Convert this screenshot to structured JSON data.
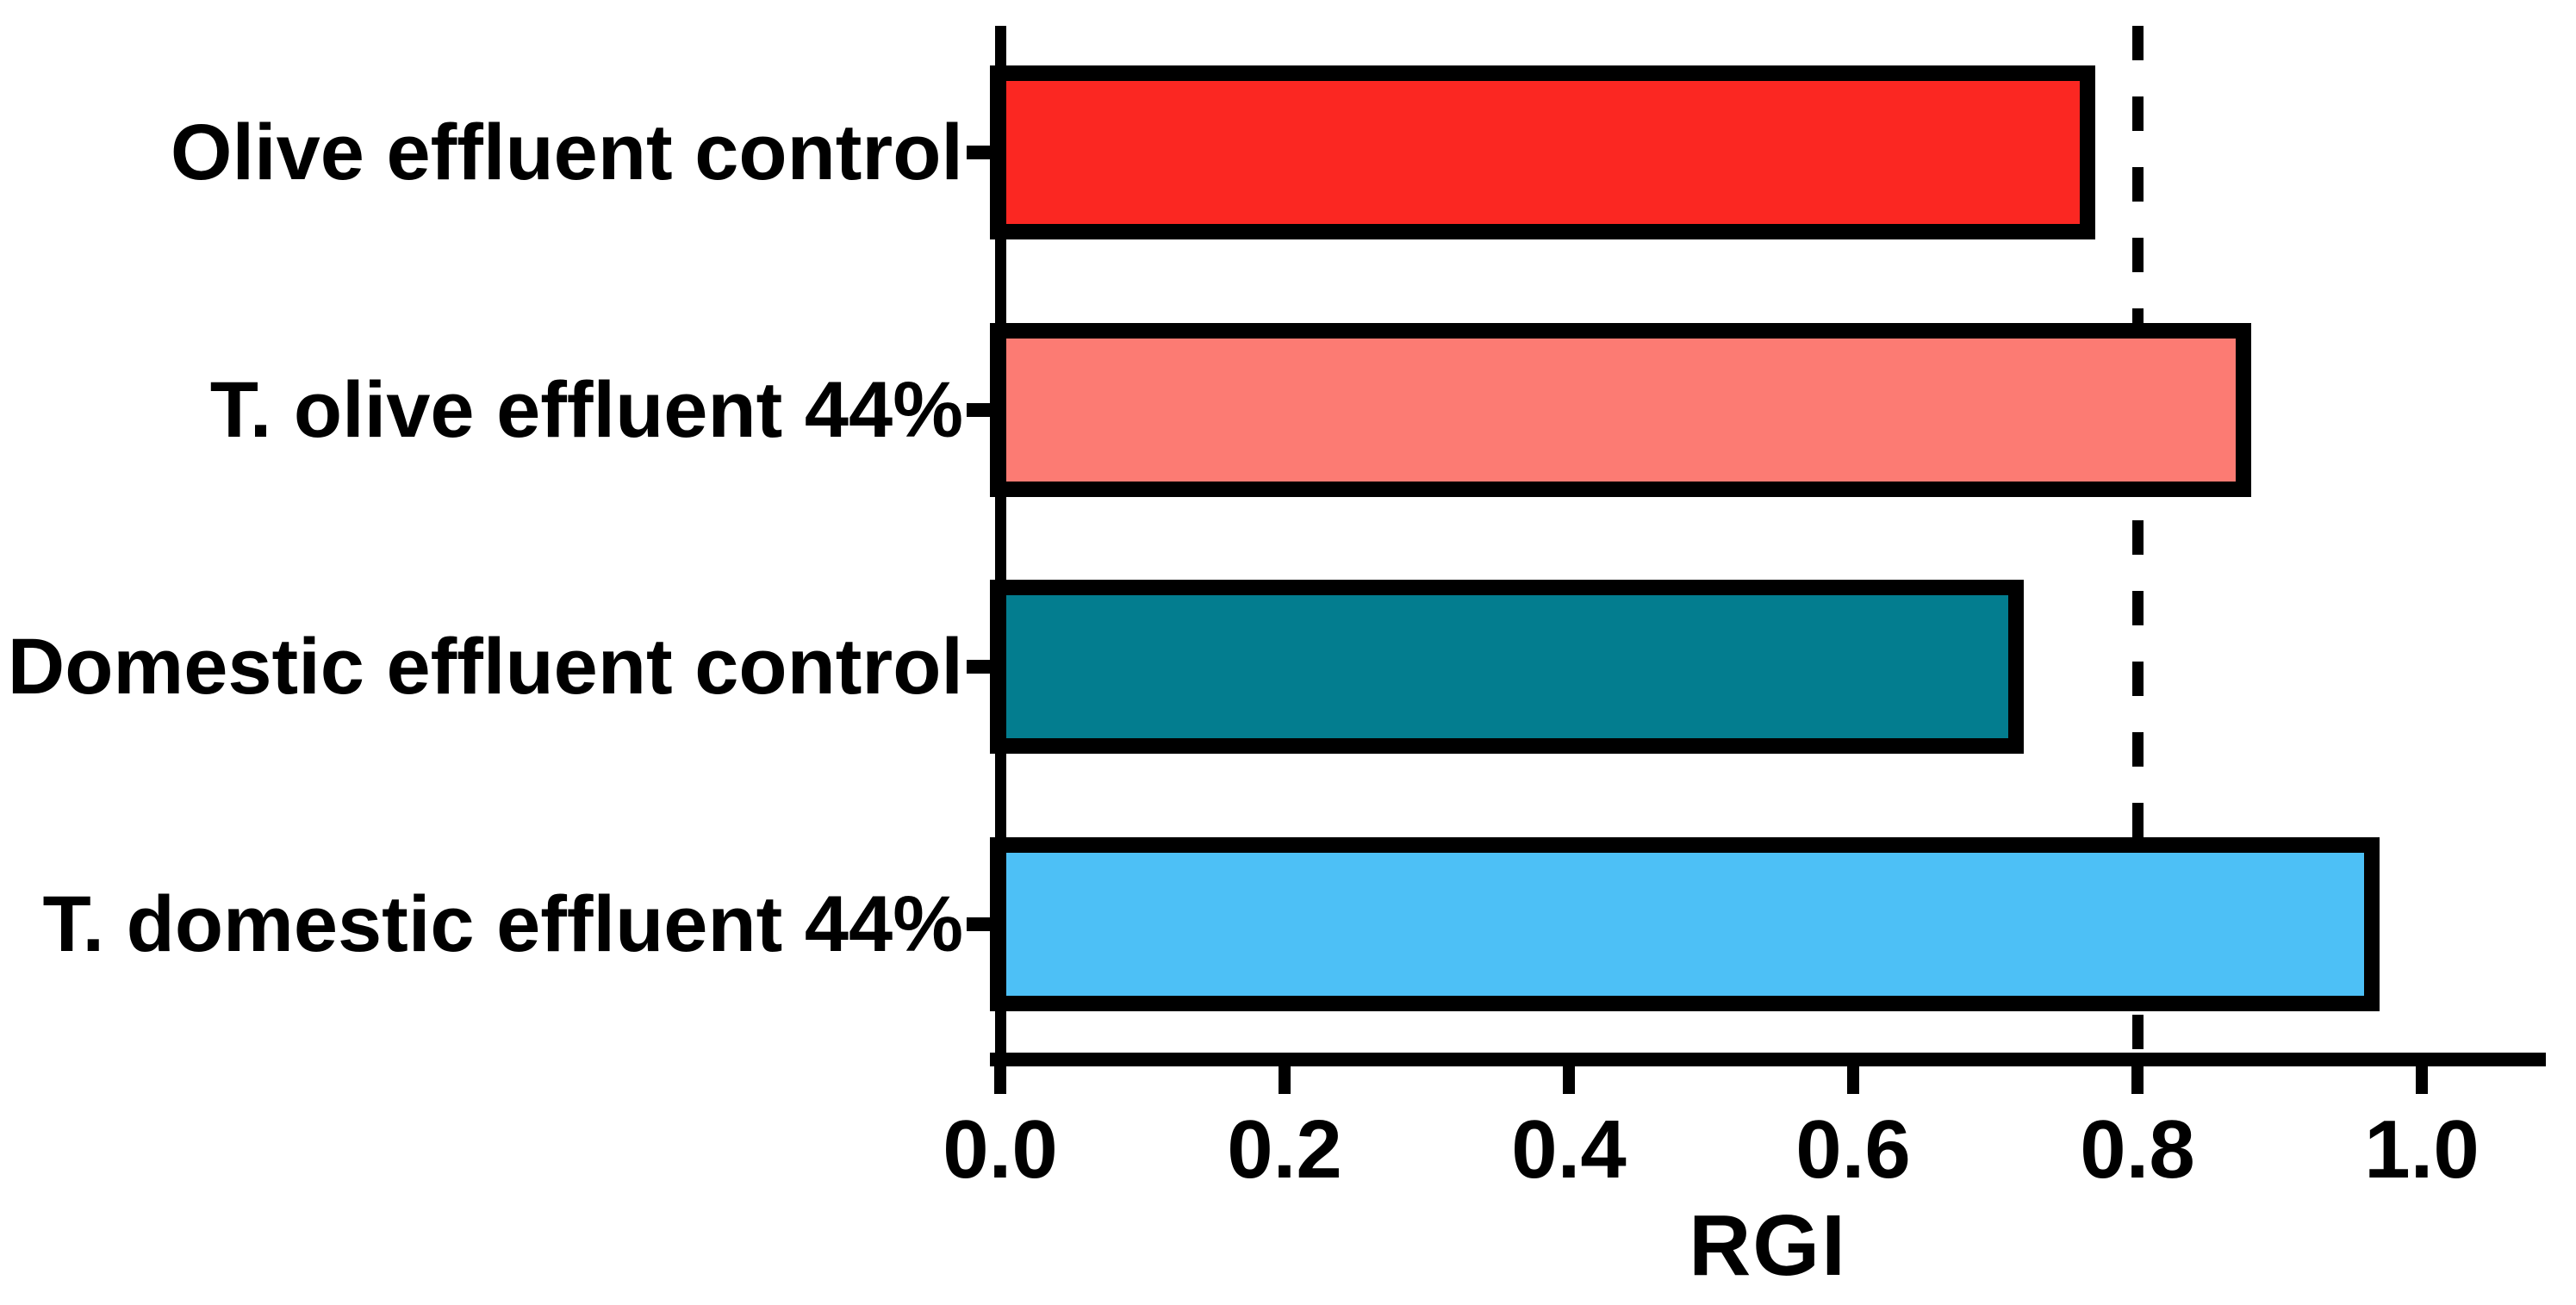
{
  "figure": {
    "background": "#FFFFFF",
    "axis_color": "#000000",
    "text_color": "#000000"
  },
  "chart_data": {
    "type": "bar",
    "orientation": "horizontal",
    "title": "",
    "xlabel": "RGI",
    "ylabel": "",
    "categories": [
      "Olive effluent control",
      "T. olive effluent 44%",
      "Domestic effluent control",
      "T. domestic effluent 44%"
    ],
    "values": [
      0.77,
      0.88,
      0.72,
      0.97
    ],
    "bar_colors": [
      "#FB2722",
      "#FC7B73",
      "#037D8F",
      "#4DC0F6"
    ],
    "bar_outline_color": "#000000",
    "xlim": [
      0,
      1.09
    ],
    "x_ticks": [
      {
        "value": 0.0,
        "label": "0.0"
      },
      {
        "value": 0.2,
        "label": "0.2"
      },
      {
        "value": 0.4,
        "label": "0.4"
      },
      {
        "value": 0.6,
        "label": "0.6"
      },
      {
        "value": 0.8,
        "label": "0.8"
      },
      {
        "value": 1.0,
        "label": "1.0"
      }
    ],
    "reference_line": {
      "value": 0.8,
      "style": "dashed",
      "color": "#000000"
    },
    "grid": false,
    "legend": false
  }
}
